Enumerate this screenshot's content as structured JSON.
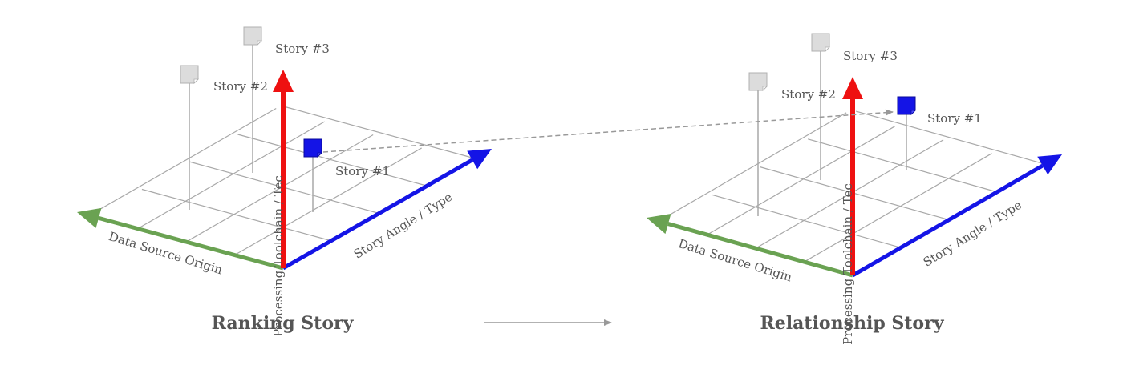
{
  "diagrams": [
    {
      "caption": "Ranking Story",
      "axes": {
        "x_label": "Story Angle / Type",
        "y_label": "Data Source Origin",
        "z_label": "Processing Toolchain / Tec"
      },
      "stories": [
        {
          "label": "Story #3",
          "highlighted": false
        },
        {
          "label": "Story #2",
          "highlighted": false
        },
        {
          "label": "Story #1",
          "highlighted": true
        }
      ]
    },
    {
      "caption": "Relationship Story",
      "axes": {
        "x_label": "Story Angle / Type",
        "y_label": "Data Source Origin",
        "z_label": "Processing Toolchain / Tec"
      },
      "stories": [
        {
          "label": "Story #3",
          "highlighted": false
        },
        {
          "label": "Story #2",
          "highlighted": false
        },
        {
          "label": "Story #1",
          "highlighted": true
        }
      ]
    }
  ],
  "colors": {
    "x_axis": "#1414e6",
    "y_axis": "#6aa252",
    "z_axis": "#ee1111",
    "grid": "#a8a8a8",
    "story_default": "#dcdcdc",
    "story_highlight": "#1414e6",
    "connector": "#999999",
    "text": "#555555"
  }
}
